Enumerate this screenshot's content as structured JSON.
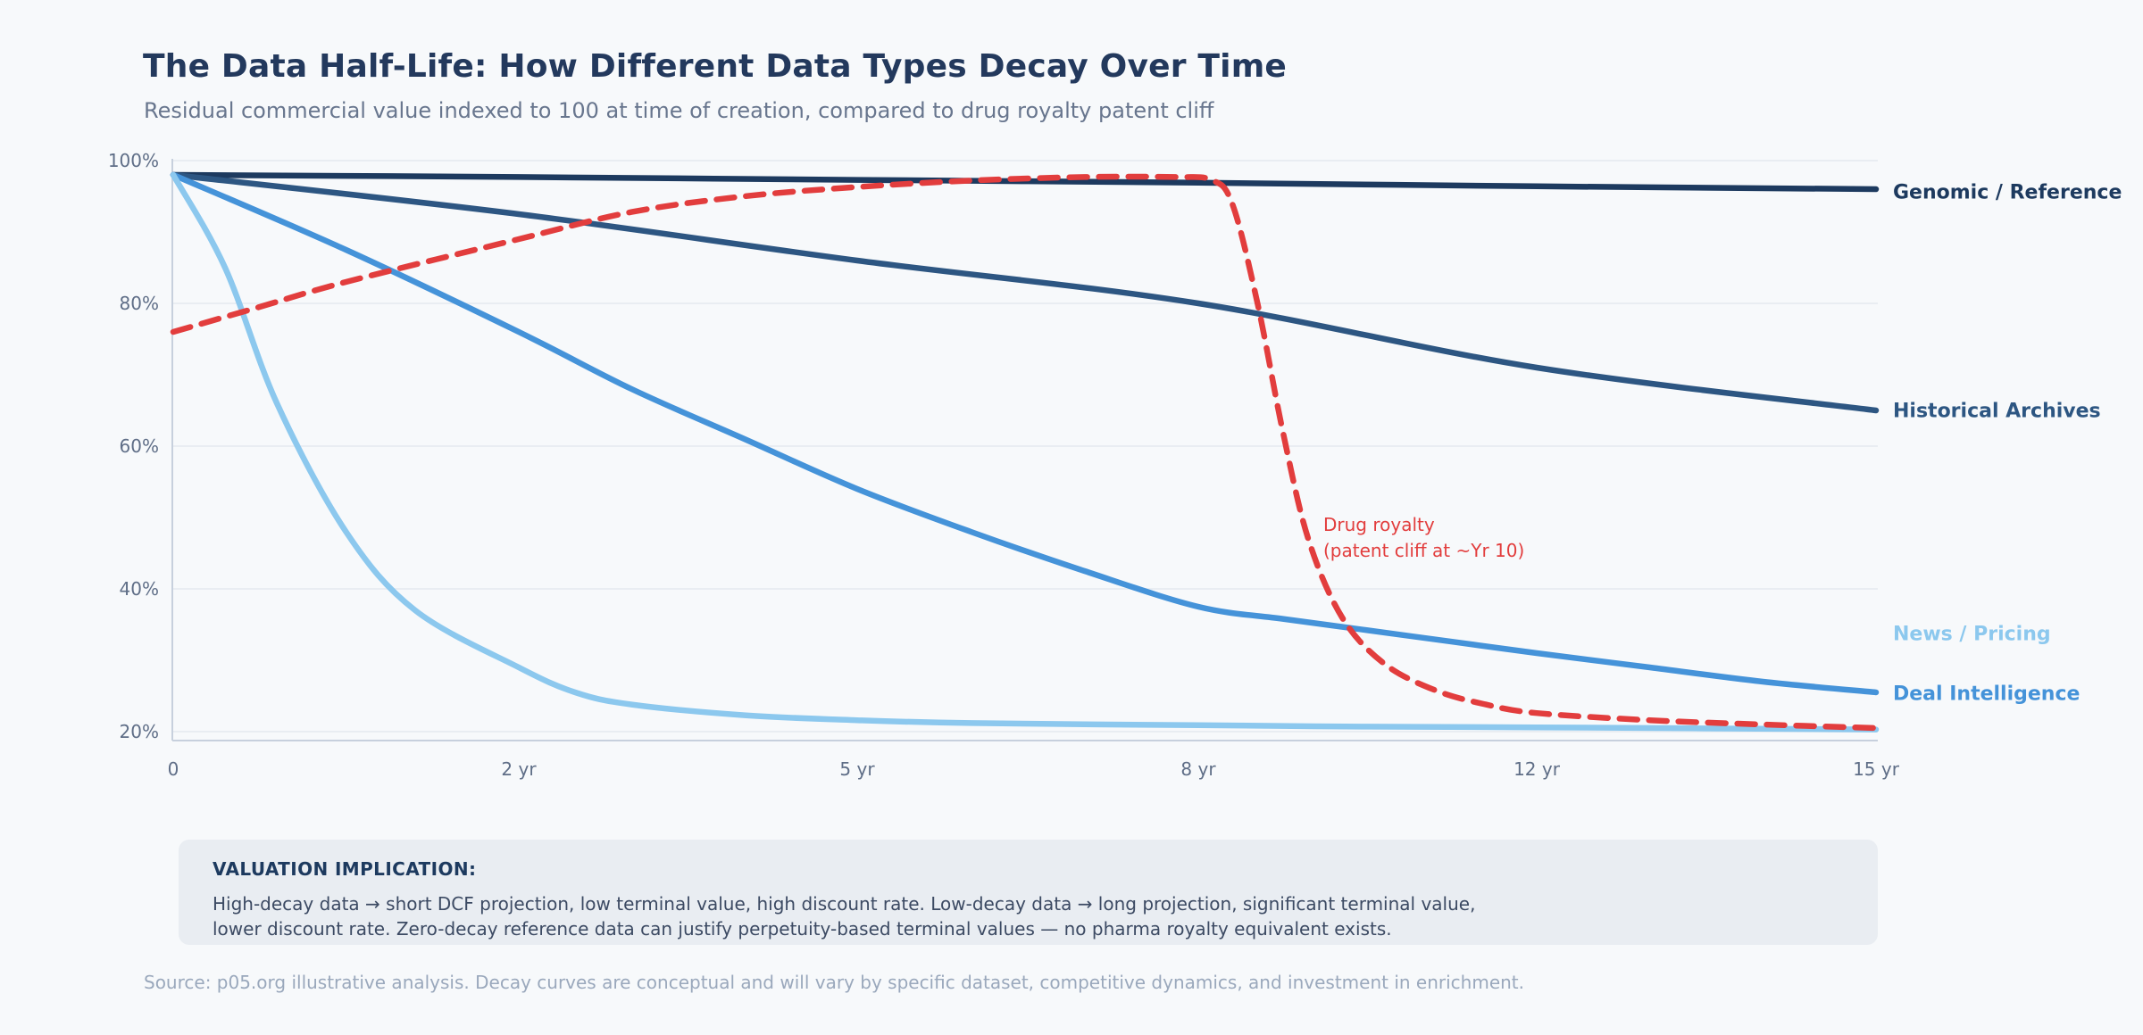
{
  "page": {
    "title": "The Data Half-Life: How Different Data Types Decay Over Time",
    "subtitle": "Residual commercial value indexed to 100 at time of creation, compared to drug royalty patent cliff",
    "source": "Source: p05.org illustrative analysis. Decay curves are conceptual and will vary by specific dataset, competitive dynamics, and investment in enrichment."
  },
  "note_box": {
    "title": "VALUATION IMPLICATION:",
    "line1": "High-decay data → short DCF projection, low terminal value, high discount rate. Low-decay data → long projection, significant terminal value,",
    "line2": "lower discount rate. Zero-decay reference data can justify perpetuity-based terminal values — no pharma royalty equivalent exists."
  },
  "chart_data": {
    "type": "line",
    "title": "The Data Half-Life: How Different Data Types Decay Over Time",
    "x_axis": {
      "tick_labels": [
        "0",
        "2 yr",
        "5 yr",
        "8 yr",
        "12 yr",
        "15 yr"
      ],
      "tick_years": [
        0,
        2,
        5,
        8,
        12,
        15
      ],
      "unit": "years",
      "note": "ticks equally spaced (ordinal axis)"
    },
    "y_axis": {
      "tick_labels": [
        "100%",
        "80%",
        "60%",
        "40%",
        "20%"
      ],
      "tick_values": [
        100,
        80,
        60,
        40,
        20
      ],
      "range": [
        20,
        100
      ],
      "label": "Residual commercial value (indexed to 100)",
      "grid": true
    },
    "annotation": {
      "line1": "Drug royalty",
      "line2": "(patent cliff at ~Yr 10)",
      "color": "#e23d3d"
    },
    "series": [
      {
        "name": "Genomic / Reference",
        "color": "#1d3a5f",
        "dash": null,
        "width": 6.5,
        "points": [
          [
            0,
            98
          ],
          [
            2,
            97.7
          ],
          [
            5,
            97.3
          ],
          [
            8,
            96.9
          ],
          [
            12,
            96.4
          ],
          [
            15,
            96
          ]
        ]
      },
      {
        "name": "Historical Archives",
        "color": "#2d5682",
        "dash": null,
        "width": 6.5,
        "points": [
          [
            0,
            98
          ],
          [
            2,
            92.5
          ],
          [
            5,
            86
          ],
          [
            8,
            80
          ],
          [
            12,
            71
          ],
          [
            15,
            65
          ]
        ]
      },
      {
        "name": "Deal Intelligence",
        "color": "#4593d9",
        "dash": null,
        "width": 6.5,
        "points": [
          [
            0,
            98
          ],
          [
            1,
            87.5
          ],
          [
            2,
            76
          ],
          [
            3,
            68
          ],
          [
            4,
            61
          ],
          [
            5,
            54
          ],
          [
            6,
            48
          ],
          [
            7,
            42.5
          ],
          [
            8,
            37.5
          ],
          [
            9,
            35.8
          ],
          [
            10,
            34.2
          ],
          [
            11,
            32.6
          ],
          [
            12,
            31
          ],
          [
            13,
            29
          ],
          [
            14,
            27
          ],
          [
            15,
            25.5
          ]
        ]
      },
      {
        "name": "News / Pricing",
        "color": "#8cc8ee",
        "dash": null,
        "width": 6.5,
        "points": [
          [
            0,
            98
          ],
          [
            0.3,
            85
          ],
          [
            0.6,
            66
          ],
          [
            1,
            48
          ],
          [
            1.4,
            37
          ],
          [
            2,
            29
          ],
          [
            2.5,
            25.5
          ],
          [
            3,
            23.8
          ],
          [
            4,
            22.3
          ],
          [
            5,
            21.6
          ],
          [
            6,
            21.2
          ],
          [
            8,
            20.9
          ],
          [
            10,
            20.7
          ],
          [
            12,
            20.6
          ],
          [
            15,
            20.3
          ]
        ]
      },
      {
        "name": "Drug royalty (patent cliff at ~Yr 10)",
        "color": "#e23d3d",
        "dash": "20 13",
        "width": 6.5,
        "points": [
          [
            0,
            76
          ],
          [
            0.5,
            79.5
          ],
          [
            1,
            83
          ],
          [
            2,
            89
          ],
          [
            3,
            92.8
          ],
          [
            4,
            95
          ],
          [
            5,
            96.3
          ],
          [
            6,
            97.2
          ],
          [
            7,
            97.7
          ],
          [
            7.8,
            97.7
          ],
          [
            8.15,
            97.3
          ],
          [
            8.4,
            94
          ],
          [
            8.7,
            80
          ],
          [
            9,
            62
          ],
          [
            9.3,
            47
          ],
          [
            9.7,
            36
          ],
          [
            10.2,
            29.5
          ],
          [
            10.8,
            25.8
          ],
          [
            11.4,
            23.8
          ],
          [
            12,
            22.6
          ],
          [
            13,
            21.6
          ],
          [
            14,
            21
          ],
          [
            15,
            20.5
          ]
        ]
      }
    ],
    "right_labels": [
      {
        "text": "Genomic / Reference",
        "color": "#1d3a5f"
      },
      {
        "text": "Historical Archives",
        "color": "#2d5682"
      },
      {
        "text": "News / Pricing",
        "color": "#8cc8ee"
      },
      {
        "text": "Deal Intelligence",
        "color": "#4593d9"
      }
    ]
  }
}
